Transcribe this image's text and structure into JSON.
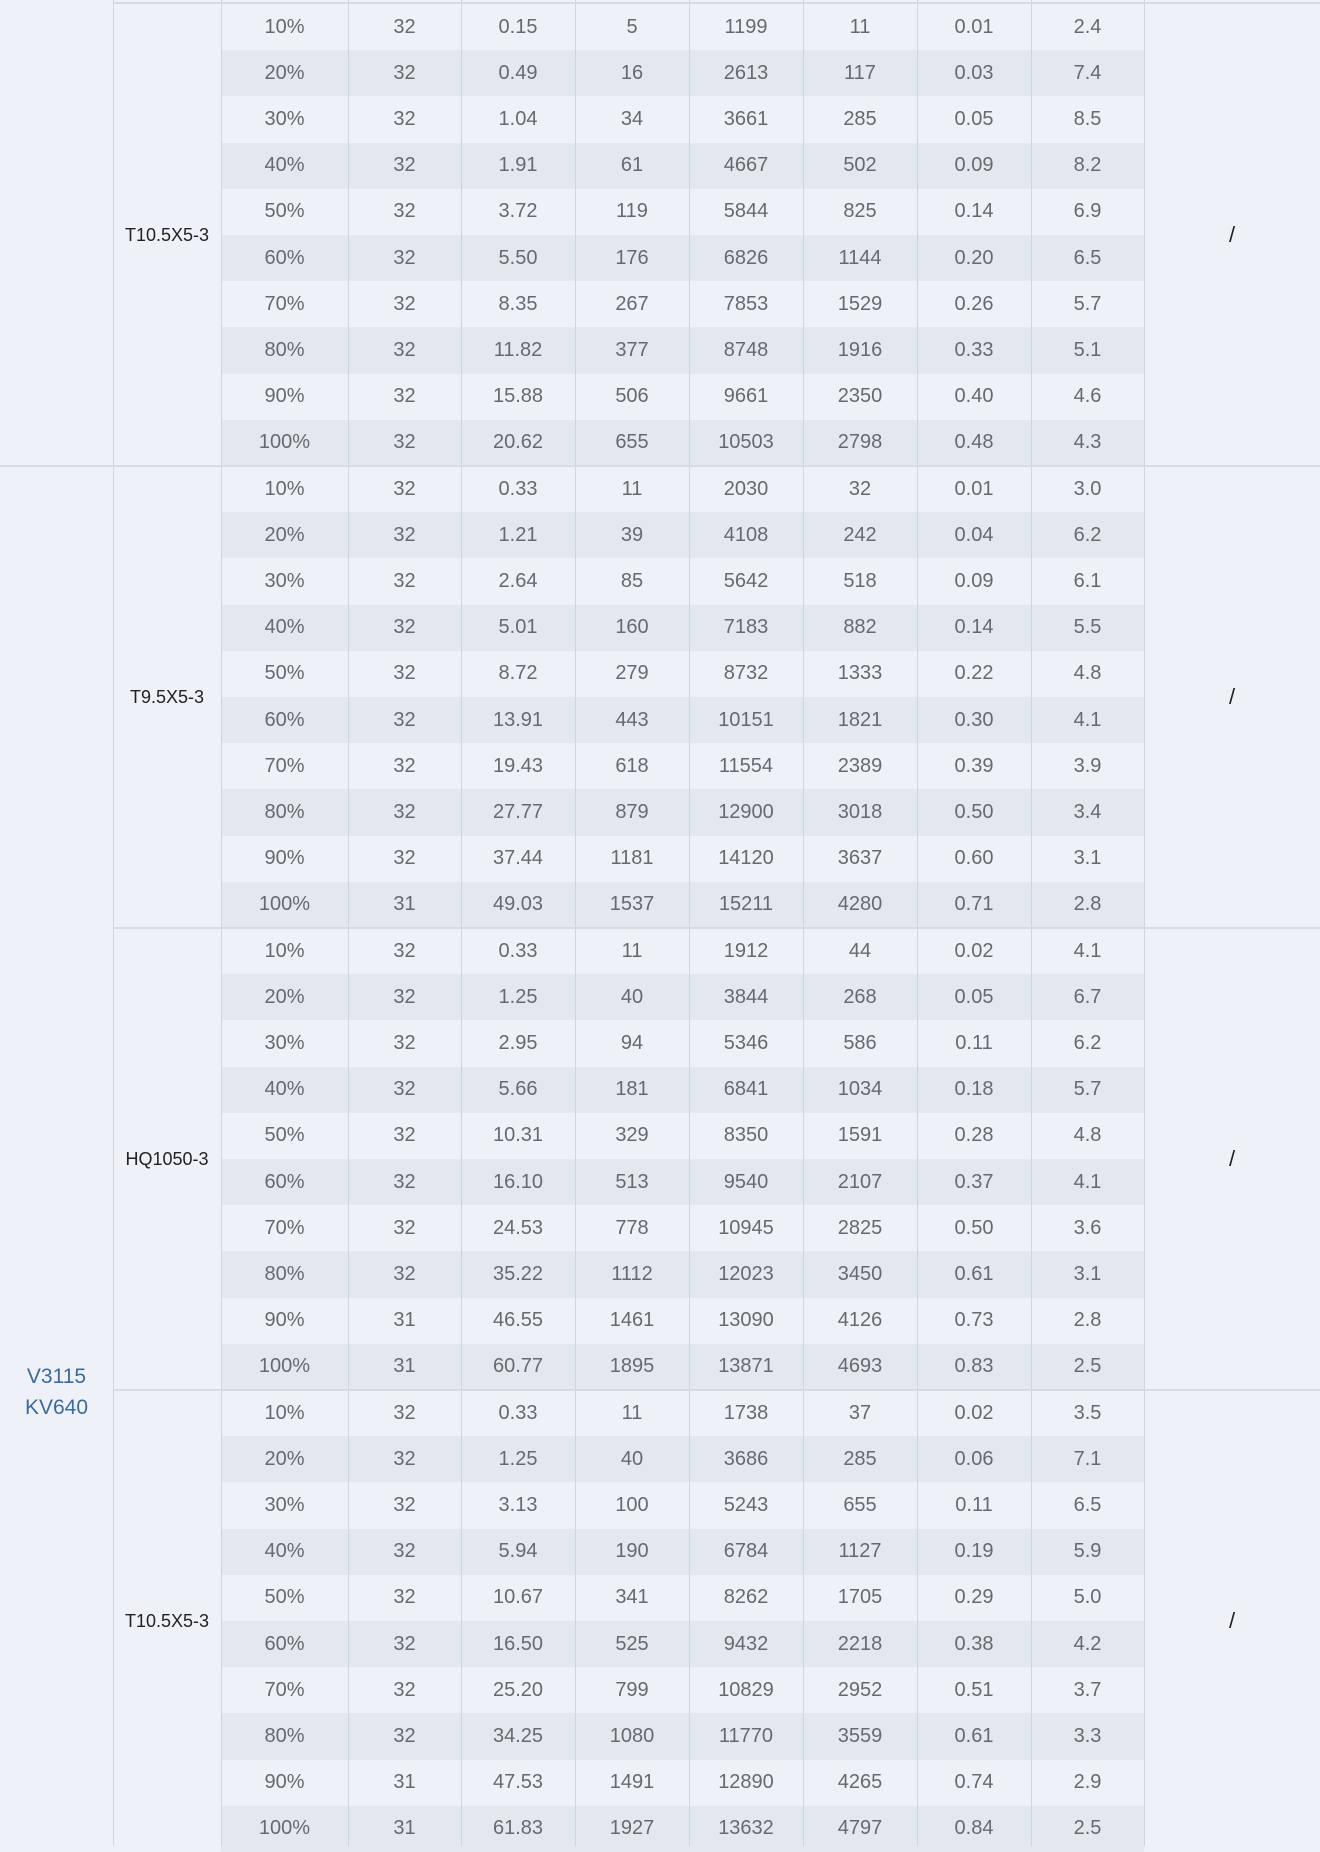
{
  "colors": {
    "background": "#eef2f8",
    "stripe": "#e3e8ef",
    "grid": "#cfd5dd",
    "motor_text": "#3d6a9a",
    "cell_text": "#666a70"
  },
  "motor_label": [
    "V3115",
    "KV640"
  ],
  "groups": [
    {
      "model": "T10.5X5-3",
      "note": "/",
      "rows": [
        [
          "10%",
          "32",
          "0.15",
          "5",
          "1199",
          "11",
          "0.01",
          "2.4"
        ],
        [
          "20%",
          "32",
          "0.49",
          "16",
          "2613",
          "117",
          "0.03",
          "7.4"
        ],
        [
          "30%",
          "32",
          "1.04",
          "34",
          "3661",
          "285",
          "0.05",
          "8.5"
        ],
        [
          "40%",
          "32",
          "1.91",
          "61",
          "4667",
          "502",
          "0.09",
          "8.2"
        ],
        [
          "50%",
          "32",
          "3.72",
          "119",
          "5844",
          "825",
          "0.14",
          "6.9"
        ],
        [
          "60%",
          "32",
          "5.50",
          "176",
          "6826",
          "1144",
          "0.20",
          "6.5"
        ],
        [
          "70%",
          "32",
          "8.35",
          "267",
          "7853",
          "1529",
          "0.26",
          "5.7"
        ],
        [
          "80%",
          "32",
          "11.82",
          "377",
          "8748",
          "1916",
          "0.33",
          "5.1"
        ],
        [
          "90%",
          "32",
          "15.88",
          "506",
          "9661",
          "2350",
          "0.40",
          "4.6"
        ],
        [
          "100%",
          "32",
          "20.62",
          "655",
          "10503",
          "2798",
          "0.48",
          "4.3"
        ]
      ]
    },
    {
      "model": "T9.5X5-3",
      "note": "/",
      "rows": [
        [
          "10%",
          "32",
          "0.33",
          "11",
          "2030",
          "32",
          "0.01",
          "3.0"
        ],
        [
          "20%",
          "32",
          "1.21",
          "39",
          "4108",
          "242",
          "0.04",
          "6.2"
        ],
        [
          "30%",
          "32",
          "2.64",
          "85",
          "5642",
          "518",
          "0.09",
          "6.1"
        ],
        [
          "40%",
          "32",
          "5.01",
          "160",
          "7183",
          "882",
          "0.14",
          "5.5"
        ],
        [
          "50%",
          "32",
          "8.72",
          "279",
          "8732",
          "1333",
          "0.22",
          "4.8"
        ],
        [
          "60%",
          "32",
          "13.91",
          "443",
          "10151",
          "1821",
          "0.30",
          "4.1"
        ],
        [
          "70%",
          "32",
          "19.43",
          "618",
          "11554",
          "2389",
          "0.39",
          "3.9"
        ],
        [
          "80%",
          "32",
          "27.77",
          "879",
          "12900",
          "3018",
          "0.50",
          "3.4"
        ],
        [
          "90%",
          "32",
          "37.44",
          "1181",
          "14120",
          "3637",
          "0.60",
          "3.1"
        ],
        [
          "100%",
          "31",
          "49.03",
          "1537",
          "15211",
          "4280",
          "0.71",
          "2.8"
        ]
      ]
    },
    {
      "model": "HQ1050-3",
      "note": "/",
      "rows": [
        [
          "10%",
          "32",
          "0.33",
          "11",
          "1912",
          "44",
          "0.02",
          "4.1"
        ],
        [
          "20%",
          "32",
          "1.25",
          "40",
          "3844",
          "268",
          "0.05",
          "6.7"
        ],
        [
          "30%",
          "32",
          "2.95",
          "94",
          "5346",
          "586",
          "0.11",
          "6.2"
        ],
        [
          "40%",
          "32",
          "5.66",
          "181",
          "6841",
          "1034",
          "0.18",
          "5.7"
        ],
        [
          "50%",
          "32",
          "10.31",
          "329",
          "8350",
          "1591",
          "0.28",
          "4.8"
        ],
        [
          "60%",
          "32",
          "16.10",
          "513",
          "9540",
          "2107",
          "0.37",
          "4.1"
        ],
        [
          "70%",
          "32",
          "24.53",
          "778",
          "10945",
          "2825",
          "0.50",
          "3.6"
        ],
        [
          "80%",
          "32",
          "35.22",
          "1112",
          "12023",
          "3450",
          "0.61",
          "3.1"
        ],
        [
          "90%",
          "31",
          "46.55",
          "1461",
          "13090",
          "4126",
          "0.73",
          "2.8"
        ],
        [
          "100%",
          "31",
          "60.77",
          "1895",
          "13871",
          "4693",
          "0.83",
          "2.5"
        ]
      ]
    },
    {
      "model": "T10.5X5-3",
      "note": "/",
      "rows": [
        [
          "10%",
          "32",
          "0.33",
          "11",
          "1738",
          "37",
          "0.02",
          "3.5"
        ],
        [
          "20%",
          "32",
          "1.25",
          "40",
          "3686",
          "285",
          "0.06",
          "7.1"
        ],
        [
          "30%",
          "32",
          "3.13",
          "100",
          "5243",
          "655",
          "0.11",
          "6.5"
        ],
        [
          "40%",
          "32",
          "5.94",
          "190",
          "6784",
          "1127",
          "0.19",
          "5.9"
        ],
        [
          "50%",
          "32",
          "10.67",
          "341",
          "8262",
          "1705",
          "0.29",
          "5.0"
        ],
        [
          "60%",
          "32",
          "16.50",
          "525",
          "9432",
          "2218",
          "0.38",
          "4.2"
        ],
        [
          "70%",
          "32",
          "25.20",
          "799",
          "10829",
          "2952",
          "0.51",
          "3.7"
        ],
        [
          "80%",
          "32",
          "34.25",
          "1080",
          "11770",
          "3559",
          "0.61",
          "3.3"
        ],
        [
          "90%",
          "31",
          "47.53",
          "1491",
          "12890",
          "4265",
          "0.74",
          "2.9"
        ],
        [
          "100%",
          "31",
          "61.83",
          "1927",
          "13632",
          "4797",
          "0.84",
          "2.5"
        ]
      ]
    }
  ]
}
